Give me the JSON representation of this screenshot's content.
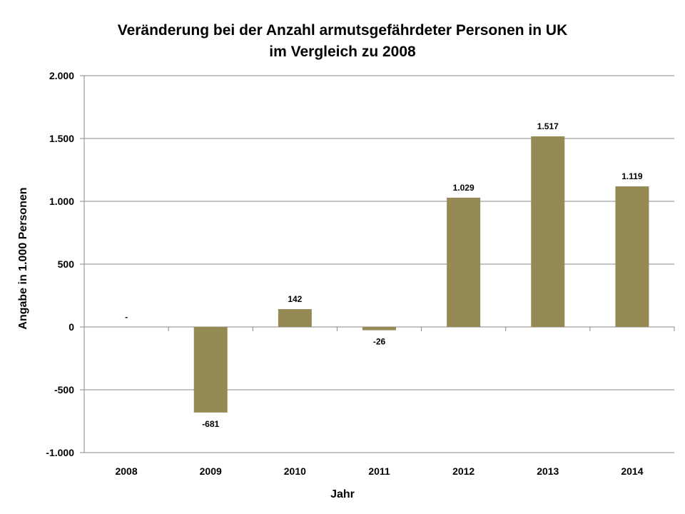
{
  "chart_data": {
    "type": "bar",
    "title_line1": "Veränderung  bei der Anzahl armutsgefährdeter Personen in UK",
    "title_line2": "im Vergleich zu 2008",
    "xlabel": "Jahr",
    "ylabel": "Angabe in 1.000 Personen",
    "categories": [
      "2008",
      "2009",
      "2010",
      "2011",
      "2012",
      "2013",
      "2014"
    ],
    "values": [
      0,
      -681,
      142,
      -26,
      1029,
      1517,
      1119
    ],
    "value_labels": [
      "-",
      "-681",
      "142",
      "-26",
      "1.029",
      "1.517",
      "1.119"
    ],
    "ylim": [
      -1000,
      2000
    ],
    "yticks": [
      -1000,
      -500,
      0,
      500,
      1000,
      1500,
      2000
    ],
    "ytick_labels": [
      "-1.000",
      "-500",
      "0",
      "500",
      "1.000",
      "1.500",
      "2.000"
    ],
    "grid": true,
    "bar_color": "#958954"
  }
}
